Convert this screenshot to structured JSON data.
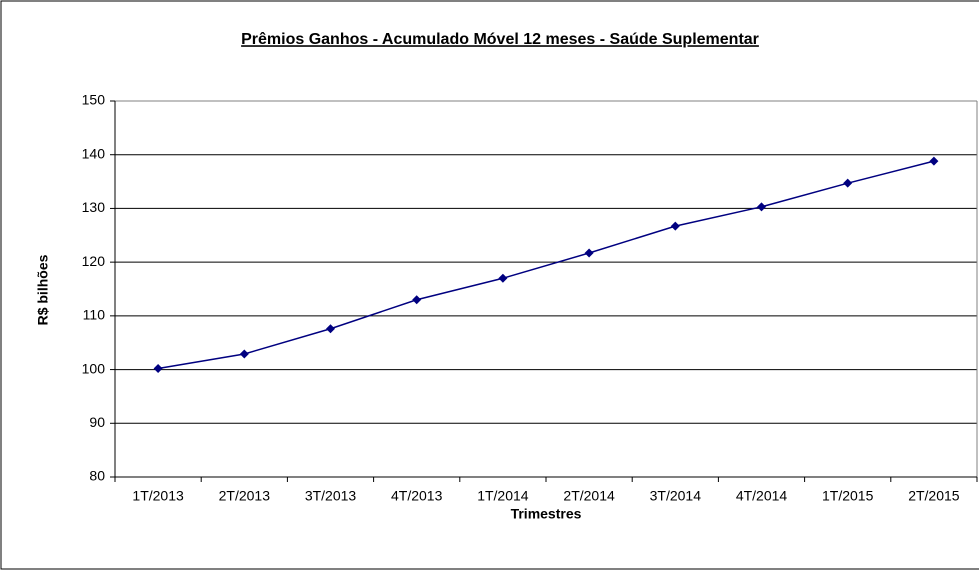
{
  "chart_data": {
    "type": "line",
    "title": "Prêmios Ganhos - Acumulado Móvel 12 meses - Saúde Suplementar",
    "x_label": "Trimestres",
    "y_label": "R$ bilhões",
    "categories": [
      "1T/2013",
      "2T/2013",
      "3T/2013",
      "4T/2013",
      "1T/2014",
      "2T/2014",
      "3T/2014",
      "4T/2014",
      "1T/2015",
      "2T/2015"
    ],
    "series": [
      {
        "color": "#000080",
        "values": [
          100.2,
          102.9,
          107.6,
          113.0,
          117.0,
          121.7,
          126.7,
          130.3,
          134.7,
          138.8
        ]
      }
    ],
    "ylim": [
      80,
      150
    ],
    "yticks": [
      80,
      90,
      100,
      110,
      120,
      130,
      140,
      150
    ],
    "grid": true
  }
}
